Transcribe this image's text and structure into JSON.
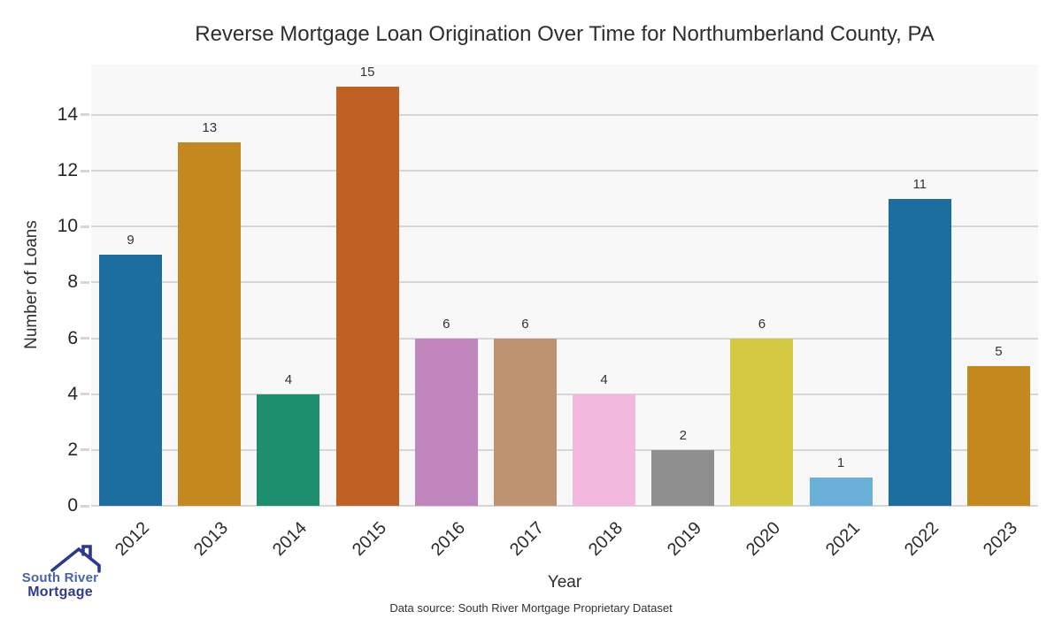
{
  "chart_data": {
    "type": "bar",
    "title": "Reverse Mortgage Loan Origination Over Time for Northumberland County, PA",
    "xlabel": "Year",
    "ylabel": "Number of Loans",
    "categories": [
      "2012",
      "2013",
      "2014",
      "2015",
      "2016",
      "2017",
      "2018",
      "2019",
      "2020",
      "2021",
      "2022",
      "2023"
    ],
    "values": [
      9,
      13,
      4,
      15,
      6,
      6,
      4,
      2,
      6,
      1,
      11,
      5
    ],
    "bar_colors": [
      "#1c6da0",
      "#c5881f",
      "#1d8f6e",
      "#bf6122",
      "#c286be",
      "#bd9371",
      "#f2b8dd",
      "#8f8f8f",
      "#d3c942",
      "#6ab0d8",
      "#1c6da0",
      "#c5881f"
    ],
    "ylim": [
      0,
      15.8
    ],
    "yticks": [
      0,
      2,
      4,
      6,
      8,
      10,
      12,
      14
    ],
    "grid": "horizontal",
    "legend": "none",
    "plot_background": "#f8f8f8",
    "grid_color": "#d6d6d6"
  },
  "footer": {
    "source_label": "Data source: South River Mortgage Proprietary Dataset"
  },
  "logo": {
    "line1": "South River",
    "line2": "Mortgage",
    "line1_color": "#4a63ad",
    "line2_color": "#2e3b8e",
    "roof_color": "#2b3990"
  }
}
